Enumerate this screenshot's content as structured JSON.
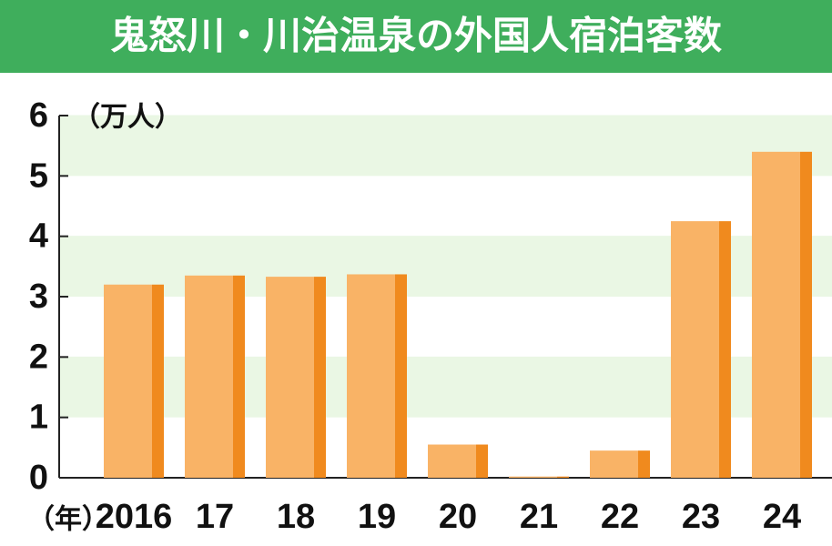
{
  "chart_data": {
    "type": "bar",
    "title": "鬼怒川・川治温泉の外国人宿泊客数",
    "y_label": "（万人）",
    "x_label": "（年）",
    "categories": [
      "2016",
      "17",
      "18",
      "19",
      "20",
      "21",
      "22",
      "23",
      "24"
    ],
    "values": [
      3.2,
      3.35,
      3.33,
      3.37,
      0.55,
      0.02,
      0.45,
      4.25,
      5.4
    ],
    "color": "#f9b366",
    "edge_color": "#f08a1e",
    "title_color": "#3fae5c",
    "stripe_color": "#eaf7e4",
    "ylim": [
      0,
      6
    ],
    "yticks": [
      0,
      1,
      2,
      3,
      4,
      5,
      6
    ],
    "grid": true
  }
}
